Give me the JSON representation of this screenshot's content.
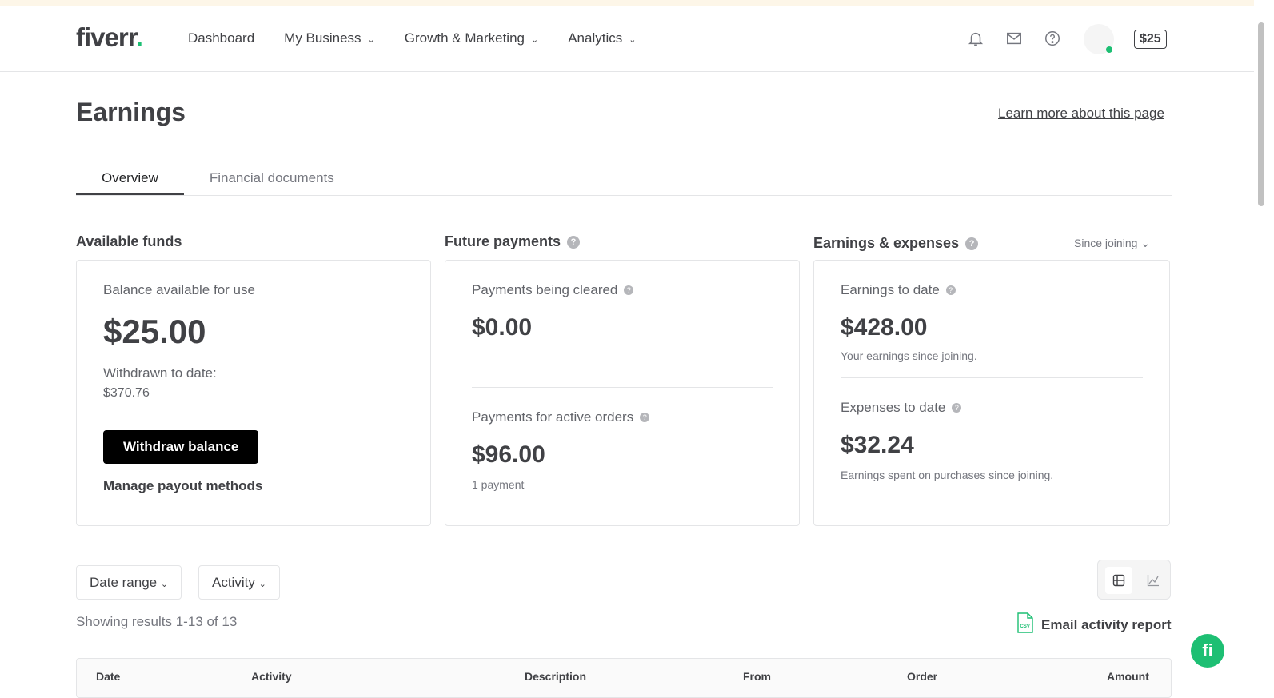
{
  "header": {
    "logo": "fiverr",
    "nav": [
      "Dashboard",
      "My Business",
      "Growth & Marketing",
      "Analytics"
    ],
    "balance": "$25"
  },
  "page": {
    "title": "Earnings",
    "learn_more": "Learn more about this page",
    "tabs": [
      "Overview",
      "Financial documents"
    ]
  },
  "available": {
    "title": "Available funds",
    "label": "Balance available for use",
    "amount": "$25.00",
    "withdrawn_label": "Withdrawn to date:",
    "withdrawn": "$370.76",
    "withdraw_button": "Withdraw balance",
    "manage": "Manage payout methods"
  },
  "future": {
    "title": "Future payments",
    "cleared_label": "Payments being cleared",
    "cleared": "$0.00",
    "active_label": "Payments for active orders",
    "active": "$96.00",
    "active_note": "1 payment"
  },
  "earnings": {
    "title": "Earnings & expenses",
    "range": "Since joining",
    "earn_label": "Earnings to date",
    "earn": "$428.00",
    "earn_note": "Your earnings since joining.",
    "exp_label": "Expenses to date",
    "exp": "$32.24",
    "exp_note": "Earnings spent on purchases since joining."
  },
  "filters": {
    "date_range": "Date range",
    "activity": "Activity",
    "results": "Showing results 1-13 of 13",
    "email_report": "Email activity report"
  },
  "table": {
    "columns": [
      "Date",
      "Activity",
      "Description",
      "From",
      "Order",
      "Amount"
    ]
  },
  "colors": {
    "brand": "#1dbf73"
  }
}
